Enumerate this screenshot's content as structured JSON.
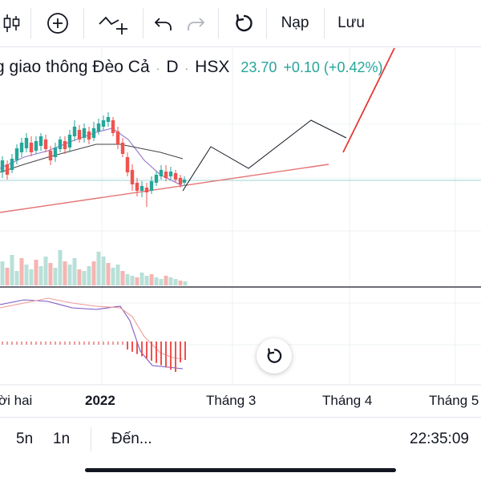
{
  "toolbar": {
    "load_label": "Nạp",
    "save_label": "Lưu"
  },
  "legend": {
    "symbol_name": "g giao thông Đèo Cả",
    "separator": "·",
    "timeframe": "D",
    "exchange": "HSX",
    "price": "23.70",
    "change": "+0.10 (+0.42%)"
  },
  "time_axis": {
    "labels": [
      "ời hai",
      "2022",
      "Tháng 3",
      "Tháng 4",
      "Tháng 5"
    ]
  },
  "bottom_bar": {
    "range_5d": "5n",
    "range_1d": "1n",
    "goto_label": "Đến...",
    "clock": "22:35:09"
  },
  "colors": {
    "up": "#26a69a",
    "down": "#ef5350",
    "price_line": "#26a69a"
  }
}
